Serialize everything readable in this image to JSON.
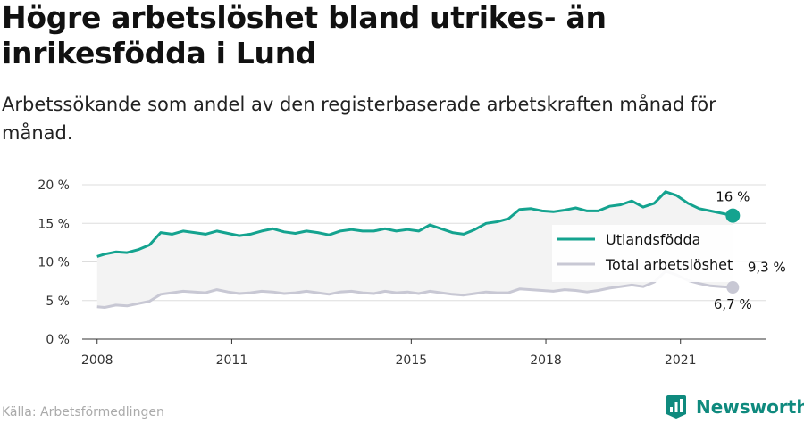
{
  "header": {
    "title": "Högre arbetslöshet bland utrikes- än inrikesfödda i Lund",
    "subtitle": "Arbetssökande som andel av den registerbaserade arbetskraften månad för månad."
  },
  "footer": {
    "source": "Källa: Arbetsförmedlingen",
    "brand": "Newsworthy"
  },
  "colors": {
    "utlandsfodda": "#14a38f",
    "total": "#c8c8d4",
    "grid": "#dddddd",
    "band": "#f3f3f3",
    "brand": "#0f8a7e"
  },
  "chart_data": {
    "type": "line",
    "x_ticks": [
      "2008",
      "2011",
      "2015",
      "2018",
      "2021"
    ],
    "y_ticks": [
      "0 %",
      "5 %",
      "10 %",
      "15 %",
      "20 %"
    ],
    "ylim": [
      0,
      20
    ],
    "xlim": [
      "2007-09",
      "2022-12"
    ],
    "grid": "horizontal",
    "legend_position": "right",
    "end_labels": {
      "utlandsfodda": "16 %",
      "total": "6,7 %",
      "inrikesfodda": "9,3 %"
    },
    "series": [
      {
        "name": "Utlandsfödda",
        "x": [
          "2008-01",
          "2008-03",
          "2008-06",
          "2008-09",
          "2008-12",
          "2009-03",
          "2009-06",
          "2009-09",
          "2009-12",
          "2010-03",
          "2010-06",
          "2010-09",
          "2010-12",
          "2011-03",
          "2011-06",
          "2011-09",
          "2011-12",
          "2012-03",
          "2012-06",
          "2012-09",
          "2012-12",
          "2013-03",
          "2013-06",
          "2013-09",
          "2013-12",
          "2014-03",
          "2014-06",
          "2014-09",
          "2014-12",
          "2015-03",
          "2015-06",
          "2015-09",
          "2015-12",
          "2016-03",
          "2016-06",
          "2016-09",
          "2016-12",
          "2017-03",
          "2017-06",
          "2017-09",
          "2017-12",
          "2018-03",
          "2018-06",
          "2018-09",
          "2018-12",
          "2019-03",
          "2019-06",
          "2019-09",
          "2019-12",
          "2020-03",
          "2020-06",
          "2020-09",
          "2020-12",
          "2021-03",
          "2021-06",
          "2021-09",
          "2021-12",
          "2022-03"
        ],
        "values": [
          10.7,
          11.0,
          11.3,
          11.2,
          11.6,
          12.2,
          13.8,
          13.6,
          14.0,
          13.8,
          13.6,
          14.0,
          13.7,
          13.4,
          13.6,
          14.0,
          14.3,
          13.9,
          13.7,
          14.0,
          13.8,
          13.5,
          14.0,
          14.2,
          14.0,
          14.0,
          14.3,
          14.0,
          14.2,
          14.0,
          14.8,
          14.3,
          13.8,
          13.6,
          14.2,
          15.0,
          15.2,
          15.6,
          16.8,
          16.9,
          16.6,
          16.5,
          16.7,
          17.0,
          16.6,
          16.6,
          17.2,
          17.4,
          17.9,
          17.1,
          17.6,
          19.1,
          18.6,
          17.6,
          16.9,
          16.6,
          16.3,
          16.0
        ]
      },
      {
        "name": "Total arbetslöshet",
        "x": [
          "2008-01",
          "2008-03",
          "2008-06",
          "2008-09",
          "2008-12",
          "2009-03",
          "2009-06",
          "2009-09",
          "2009-12",
          "2010-03",
          "2010-06",
          "2010-09",
          "2010-12",
          "2011-03",
          "2011-06",
          "2011-09",
          "2011-12",
          "2012-03",
          "2012-06",
          "2012-09",
          "2012-12",
          "2013-03",
          "2013-06",
          "2013-09",
          "2013-12",
          "2014-03",
          "2014-06",
          "2014-09",
          "2014-12",
          "2015-03",
          "2015-06",
          "2015-09",
          "2015-12",
          "2016-03",
          "2016-06",
          "2016-09",
          "2016-12",
          "2017-03",
          "2017-06",
          "2017-09",
          "2017-12",
          "2018-03",
          "2018-06",
          "2018-09",
          "2018-12",
          "2019-03",
          "2019-06",
          "2019-09",
          "2019-12",
          "2020-03",
          "2020-06",
          "2020-09",
          "2020-12",
          "2021-03",
          "2021-06",
          "2021-09",
          "2021-12",
          "2022-03"
        ],
        "values": [
          4.2,
          4.1,
          4.4,
          4.3,
          4.6,
          4.9,
          5.8,
          6.0,
          6.2,
          6.1,
          6.0,
          6.4,
          6.1,
          5.9,
          6.0,
          6.2,
          6.1,
          5.9,
          6.0,
          6.2,
          6.0,
          5.8,
          6.1,
          6.2,
          6.0,
          5.9,
          6.2,
          6.0,
          6.1,
          5.9,
          6.2,
          6.0,
          5.8,
          5.7,
          5.9,
          6.1,
          6.0,
          6.0,
          6.5,
          6.4,
          6.3,
          6.2,
          6.4,
          6.3,
          6.1,
          6.3,
          6.6,
          6.8,
          7.0,
          6.8,
          7.4,
          8.8,
          8.3,
          7.6,
          7.2,
          6.9,
          6.8,
          6.7
        ]
      }
    ]
  }
}
